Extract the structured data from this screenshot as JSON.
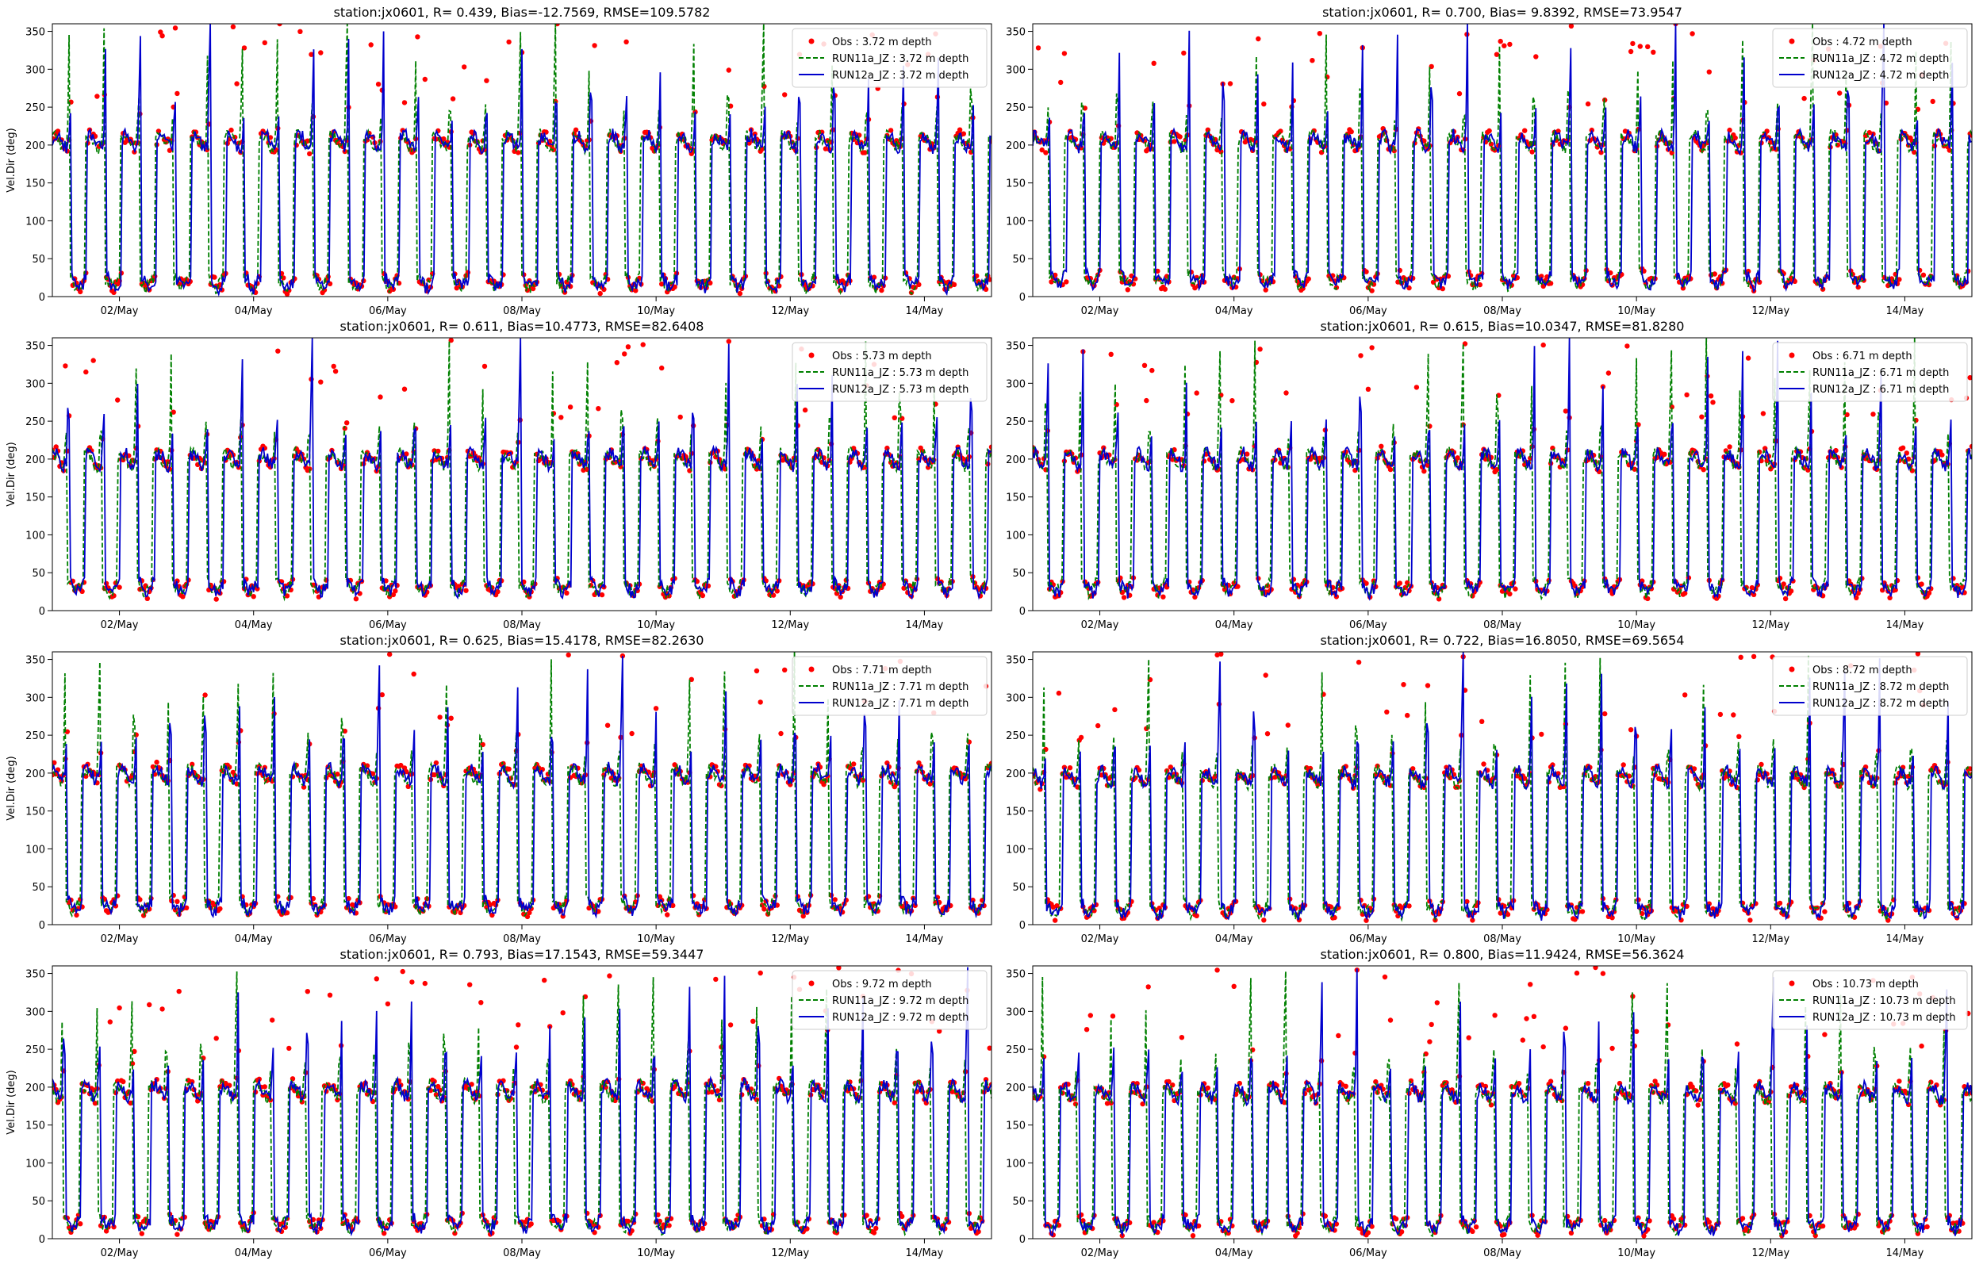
{
  "figure": {
    "ylabel": "Vel.Dir (deg)"
  },
  "chart_data": [
    {
      "type": "line",
      "title": "station:jx0601, R= 0.439, Bias=-12.7569, RMSE=109.5782",
      "depth": 3.72,
      "ylabel": "Vel.Dir (deg)",
      "xlim": [
        "2023-05-01",
        "2023-05-15"
      ],
      "ylim": [
        0,
        360
      ],
      "high_level": 205,
      "low_level": 18,
      "legend": [
        "Obs : 3.72 m depth",
        "RUN11a_JZ : 3.72 m depth",
        "RUN12a_JZ : 3.72 m depth"
      ],
      "legend_position": "upper right"
    },
    {
      "type": "line",
      "title": "station:jx0601, R= 0.700, Bias= 9.8392, RMSE=73.9547",
      "depth": 4.72,
      "ylabel": "",
      "xlim": [
        "2023-05-01",
        "2023-05-15"
      ],
      "ylim": [
        0,
        360
      ],
      "high_level": 205,
      "low_level": 22,
      "legend": [
        "Obs : 4.72 m depth",
        "RUN11a_JZ : 4.72 m depth",
        "RUN12a_JZ : 4.72 m depth"
      ],
      "legend_position": "upper right"
    },
    {
      "type": "line",
      "title": "station:jx0601, R= 0.611, Bias=10.4773, RMSE=82.6408",
      "depth": 5.73,
      "ylabel": "Vel.Dir (deg)",
      "xlim": [
        "2023-05-01",
        "2023-05-15"
      ],
      "ylim": [
        0,
        360
      ],
      "high_level": 200,
      "low_level": 30,
      "legend": [
        "Obs : 5.73 m depth",
        "RUN11a_JZ : 5.73 m depth",
        "RUN12a_JZ : 5.73 m depth"
      ],
      "legend_position": "upper right"
    },
    {
      "type": "line",
      "title": "station:jx0601, R= 0.615, Bias=10.0347, RMSE=81.8280",
      "depth": 6.71,
      "ylabel": "",
      "xlim": [
        "2023-05-01",
        "2023-05-15"
      ],
      "ylim": [
        0,
        360
      ],
      "high_level": 200,
      "low_level": 30,
      "legend": [
        "Obs : 6.71 m depth",
        "RUN11a_JZ : 6.71 m depth",
        "RUN12a_JZ : 6.71 m depth"
      ],
      "legend_position": "upper right"
    },
    {
      "type": "line",
      "title": "station:jx0601, R= 0.625, Bias=15.4178, RMSE=82.2630",
      "depth": 7.71,
      "ylabel": "Vel.Dir (deg)",
      "xlim": [
        "2023-05-01",
        "2023-05-15"
      ],
      "ylim": [
        0,
        360
      ],
      "high_level": 198,
      "low_level": 25,
      "legend": [
        "Obs : 7.71 m depth",
        "RUN11a_JZ : 7.71 m depth",
        "RUN12a_JZ : 7.71 m depth"
      ],
      "legend_position": "upper right"
    },
    {
      "type": "line",
      "title": "station:jx0601, R= 0.722, Bias=16.8050, RMSE=69.5654",
      "depth": 8.72,
      "ylabel": "",
      "xlim": [
        "2023-05-01",
        "2023-05-15"
      ],
      "ylim": [
        0,
        360
      ],
      "high_level": 195,
      "low_level": 20,
      "legend": [
        "Obs : 8.72 m depth",
        "RUN11a_JZ : 8.72 m depth",
        "RUN12a_JZ : 8.72 m depth"
      ],
      "legend_position": "upper right"
    },
    {
      "type": "line",
      "title": "station:jx0601, R= 0.793, Bias=17.1543, RMSE=59.3447",
      "depth": 9.72,
      "ylabel": "Vel.Dir (deg)",
      "xlim": [
        "2023-05-01",
        "2023-05-15"
      ],
      "ylim": [
        0,
        360
      ],
      "high_level": 195,
      "low_level": 20,
      "legend": [
        "Obs : 9.72 m depth",
        "RUN11a_JZ : 9.72 m depth",
        "RUN12a_JZ : 9.72 m depth"
      ],
      "legend_position": "upper right"
    },
    {
      "type": "line",
      "title": "station:jx0601, R= 0.800, Bias=11.9424, RMSE=56.3624",
      "depth": 10.73,
      "ylabel": "",
      "xlim": [
        "2023-05-01",
        "2023-05-15"
      ],
      "ylim": [
        0,
        360
      ],
      "high_level": 192,
      "low_level": 18,
      "legend": [
        "Obs : 10.73 m depth",
        "RUN11a_JZ : 10.73 m depth",
        "RUN12a_JZ : 10.73 m depth"
      ],
      "legend_position": "upper right"
    }
  ],
  "axes": {
    "yticks": [
      0,
      50,
      100,
      150,
      200,
      250,
      300,
      350
    ],
    "xticks": [
      {
        "date": "2023-05-02",
        "label": "02/May"
      },
      {
        "date": "2023-05-04",
        "label": "04/May"
      },
      {
        "date": "2023-05-06",
        "label": "06/May"
      },
      {
        "date": "2023-05-08",
        "label": "08/May"
      },
      {
        "date": "2023-05-10",
        "label": "10/May"
      },
      {
        "date": "2023-05-12",
        "label": "12/May"
      },
      {
        "date": "2023-05-14",
        "label": "14/May"
      }
    ]
  },
  "series_style": {
    "obs_color": "#ff0000",
    "run11_color": "#008000",
    "run12_color": "#0000cd"
  }
}
